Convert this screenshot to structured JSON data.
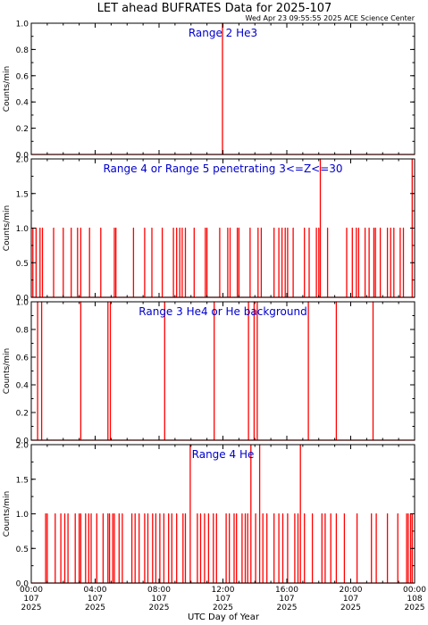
{
  "title": "LET ahead BUFRATES Data for 2025-107",
  "timestamp": "Wed Apr 23 09:55:55 2025 ACE Science Center",
  "xlabel": "UTC Day of Year",
  "colors": {
    "trace": "#ff0000",
    "label": "#0000cc",
    "axis": "#000000"
  },
  "chart_data": [
    {
      "type": "line",
      "title": "Range 2 He3",
      "ylabel": "Counts/min",
      "ylim": [
        0,
        1.0
      ],
      "yticks": [
        "0.0",
        "0.2",
        "0.4",
        "0.6",
        "0.8",
        "1.0"
      ],
      "xlim": [
        0,
        24
      ],
      "baseline": 0,
      "spikes": [
        [
          11.97,
          1.0
        ]
      ]
    },
    {
      "type": "line",
      "title": "Range 4 or Range 5 penetrating 3<=Z<=30",
      "ylabel": "Counts/min",
      "ylim": [
        0,
        2.0
      ],
      "yticks": [
        "0.0",
        "0.5",
        "1.0",
        "1.5",
        "2.0"
      ],
      "xlim": [
        0,
        24
      ],
      "baseline": 0,
      "spikes": [
        [
          0.1,
          1
        ],
        [
          0.3,
          1
        ],
        [
          0.55,
          1
        ],
        [
          0.7,
          1
        ],
        [
          1.4,
          1
        ],
        [
          2.0,
          1
        ],
        [
          2.5,
          1
        ],
        [
          2.9,
          1
        ],
        [
          3.1,
          1
        ],
        [
          3.65,
          1
        ],
        [
          4.35,
          1
        ],
        [
          5.2,
          1
        ],
        [
          5.3,
          1
        ],
        [
          6.4,
          1
        ],
        [
          7.1,
          1
        ],
        [
          7.55,
          1
        ],
        [
          8.2,
          1
        ],
        [
          8.9,
          1
        ],
        [
          9.1,
          1
        ],
        [
          9.3,
          1
        ],
        [
          9.45,
          1
        ],
        [
          9.65,
          1
        ],
        [
          10.2,
          1
        ],
        [
          10.9,
          1
        ],
        [
          11.0,
          1
        ],
        [
          11.8,
          1
        ],
        [
          12.3,
          1
        ],
        [
          12.45,
          1
        ],
        [
          12.9,
          1
        ],
        [
          13.0,
          1
        ],
        [
          13.7,
          1
        ],
        [
          14.2,
          1
        ],
        [
          14.4,
          1
        ],
        [
          15.2,
          1
        ],
        [
          15.5,
          1
        ],
        [
          15.7,
          1
        ],
        [
          15.9,
          1
        ],
        [
          16.05,
          1
        ],
        [
          16.4,
          1
        ],
        [
          17.1,
          1
        ],
        [
          17.4,
          1
        ],
        [
          17.85,
          1
        ],
        [
          18.0,
          1
        ],
        [
          18.1,
          2
        ],
        [
          18.55,
          1
        ],
        [
          19.75,
          1
        ],
        [
          20.1,
          1
        ],
        [
          20.35,
          1
        ],
        [
          20.5,
          1
        ],
        [
          20.9,
          1
        ],
        [
          21.15,
          1
        ],
        [
          21.45,
          1
        ],
        [
          21.55,
          1
        ],
        [
          21.85,
          1
        ],
        [
          22.3,
          1
        ],
        [
          22.5,
          1
        ],
        [
          22.7,
          1
        ],
        [
          23.1,
          1
        ],
        [
          23.3,
          1
        ],
        [
          23.85,
          2.0
        ]
      ]
    },
    {
      "type": "line",
      "title": "Range 3 He4 or He background",
      "ylabel": "Counts/min",
      "ylim": [
        0,
        1.0
      ],
      "yticks": [
        "0.0",
        "0.2",
        "0.4",
        "0.6",
        "0.8",
        "1.0"
      ],
      "xlim": [
        0,
        24
      ],
      "baseline": 0,
      "spikes": [
        [
          0.4,
          1
        ],
        [
          0.65,
          1
        ],
        [
          3.1,
          1
        ],
        [
          4.8,
          1
        ],
        [
          4.95,
          1
        ],
        [
          8.35,
          1
        ],
        [
          11.45,
          1
        ],
        [
          13.6,
          1
        ],
        [
          13.95,
          1
        ],
        [
          14.15,
          1
        ],
        [
          17.35,
          1
        ],
        [
          19.1,
          1
        ],
        [
          21.4,
          1
        ]
      ]
    },
    {
      "type": "line",
      "title": "Range 4 He",
      "ylabel": "Counts/min",
      "ylim": [
        0,
        2.0
      ],
      "yticks": [
        "0.0",
        "0.5",
        "1.0",
        "1.5",
        "2.0"
      ],
      "xlim": [
        0,
        24
      ],
      "baseline": 0,
      "spikes": [
        [
          0.9,
          1
        ],
        [
          1.0,
          1
        ],
        [
          1.5,
          1
        ],
        [
          1.85,
          1
        ],
        [
          2.1,
          1
        ],
        [
          2.3,
          1
        ],
        [
          2.75,
          1
        ],
        [
          3.0,
          1
        ],
        [
          3.1,
          1
        ],
        [
          3.4,
          1
        ],
        [
          3.6,
          1
        ],
        [
          3.75,
          1
        ],
        [
          4.1,
          1
        ],
        [
          4.5,
          1
        ],
        [
          4.8,
          1
        ],
        [
          4.9,
          1
        ],
        [
          5.1,
          1
        ],
        [
          5.2,
          1
        ],
        [
          5.5,
          1
        ],
        [
          5.7,
          1
        ],
        [
          6.3,
          1
        ],
        [
          6.5,
          1
        ],
        [
          6.75,
          1
        ],
        [
          7.1,
          1
        ],
        [
          7.3,
          1
        ],
        [
          7.6,
          1
        ],
        [
          7.8,
          1
        ],
        [
          8.05,
          1
        ],
        [
          8.3,
          1
        ],
        [
          8.6,
          1
        ],
        [
          8.8,
          1
        ],
        [
          9.1,
          1
        ],
        [
          9.5,
          1
        ],
        [
          9.65,
          1
        ],
        [
          9.95,
          2
        ],
        [
          10.4,
          1
        ],
        [
          10.6,
          1
        ],
        [
          10.85,
          1
        ],
        [
          11.1,
          1
        ],
        [
          11.4,
          1
        ],
        [
          11.6,
          1
        ],
        [
          12.2,
          1
        ],
        [
          12.4,
          1
        ],
        [
          12.7,
          1
        ],
        [
          12.85,
          1
        ],
        [
          13.2,
          1
        ],
        [
          13.4,
          1
        ],
        [
          13.55,
          1
        ],
        [
          13.75,
          2
        ],
        [
          14.05,
          1
        ],
        [
          14.3,
          2
        ],
        [
          14.5,
          1
        ],
        [
          14.75,
          1
        ],
        [
          15.2,
          1
        ],
        [
          15.5,
          1
        ],
        [
          15.75,
          1
        ],
        [
          16.05,
          1
        ],
        [
          16.5,
          1
        ],
        [
          16.7,
          1
        ],
        [
          16.85,
          2
        ],
        [
          17.1,
          1
        ],
        [
          17.6,
          1
        ],
        [
          18.2,
          1
        ],
        [
          18.4,
          1
        ],
        [
          18.75,
          1
        ],
        [
          19.1,
          1
        ],
        [
          19.6,
          1
        ],
        [
          20.4,
          1
        ],
        [
          21.3,
          1
        ],
        [
          21.6,
          1
        ],
        [
          22.3,
          1
        ],
        [
          22.95,
          1
        ],
        [
          23.5,
          1
        ],
        [
          23.6,
          1
        ],
        [
          23.75,
          1
        ],
        [
          23.85,
          1
        ]
      ]
    }
  ],
  "x_ticks": [
    {
      "h": 0,
      "time": "00:00",
      "day": "107",
      "year": "2025"
    },
    {
      "h": 4,
      "time": "04:00",
      "day": "107",
      "year": "2025"
    },
    {
      "h": 8,
      "time": "08:00",
      "day": "107",
      "year": "2025"
    },
    {
      "h": 12,
      "time": "12:00",
      "day": "107",
      "year": "2025"
    },
    {
      "h": 16,
      "time": "16:00",
      "day": "107",
      "year": "2025"
    },
    {
      "h": 20,
      "time": "20:00",
      "day": "107",
      "year": "2025"
    },
    {
      "h": 24,
      "time": "00:00",
      "day": "108",
      "year": "2025"
    }
  ]
}
